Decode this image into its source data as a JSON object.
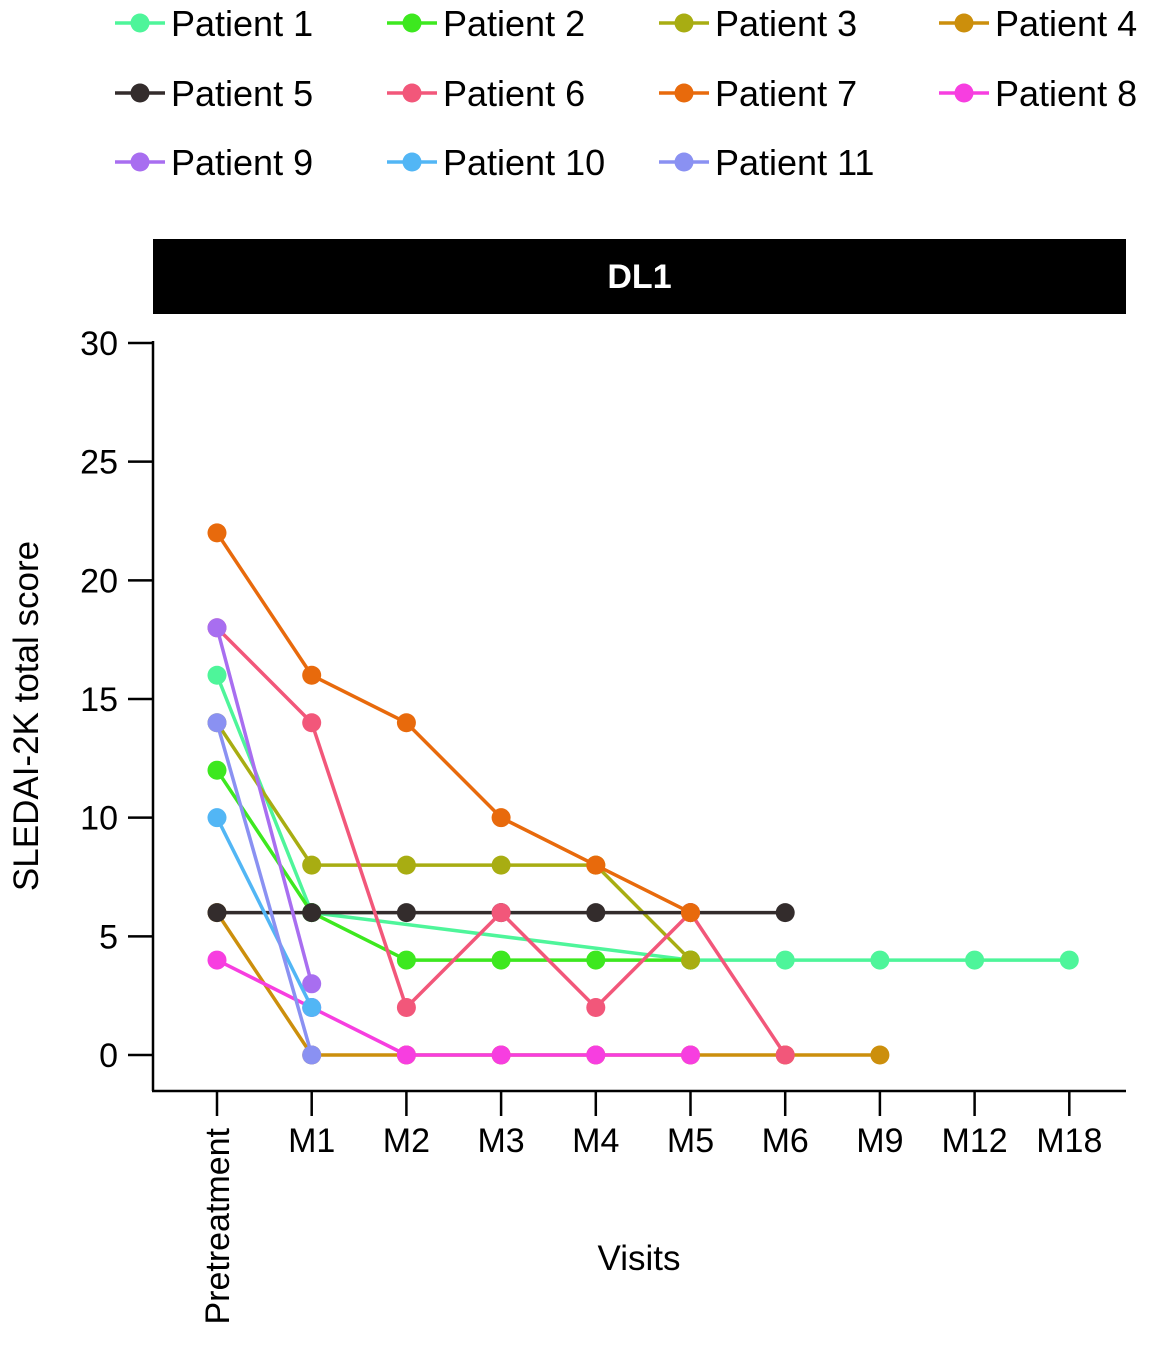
{
  "chart_data": {
    "type": "line",
    "panel_title": "DL1",
    "xlabel": "Visits",
    "ylabel": "SLEDAI-2K total score",
    "categories": [
      "Pretreatment",
      "M1",
      "M2",
      "M3",
      "M4",
      "M5",
      "M6",
      "M9",
      "M12",
      "M18"
    ],
    "yticks": [
      "0",
      "5",
      "10",
      "15",
      "20",
      "25",
      "30"
    ],
    "ylim": [
      0,
      30
    ],
    "grid": false,
    "legend_position": "top",
    "series": [
      {
        "name": "Patient 1",
        "color": "#4ef59a",
        "values": [
          16,
          6,
          null,
          null,
          null,
          4,
          4,
          4,
          4,
          4
        ]
      },
      {
        "name": "Patient 2",
        "color": "#3de81f",
        "values": [
          12,
          6,
          4,
          4,
          4,
          4,
          null,
          null,
          null,
          null
        ]
      },
      {
        "name": "Patient 3",
        "color": "#a8ad12",
        "values": [
          14,
          8,
          8,
          8,
          8,
          4,
          null,
          null,
          null,
          null
        ]
      },
      {
        "name": "Patient 4",
        "color": "#cc8f0c",
        "values": [
          6,
          0,
          0,
          0,
          0,
          0,
          0,
          0,
          null,
          null
        ]
      },
      {
        "name": "Patient 5",
        "color": "#332c2c",
        "values": [
          6,
          6,
          6,
          6,
          6,
          6,
          6,
          null,
          null,
          null
        ]
      },
      {
        "name": "Patient 6",
        "color": "#f2577a",
        "values": [
          18,
          14,
          2,
          6,
          2,
          6,
          0,
          null,
          null,
          null
        ]
      },
      {
        "name": "Patient 7",
        "color": "#e86a0c",
        "values": [
          22,
          16,
          14,
          10,
          8,
          6,
          null,
          null,
          null,
          null
        ]
      },
      {
        "name": "Patient 8",
        "color": "#f73ee0",
        "values": [
          4,
          2,
          0,
          0,
          0,
          0,
          null,
          null,
          null,
          null
        ]
      },
      {
        "name": "Patient 9",
        "color": "#a86ef0",
        "values": [
          18,
          3,
          null,
          null,
          null,
          null,
          null,
          null,
          null,
          null
        ]
      },
      {
        "name": "Patient 10",
        "color": "#52b6f5",
        "values": [
          10,
          2,
          null,
          null,
          null,
          null,
          null,
          null,
          null,
          null
        ]
      },
      {
        "name": "Patient 11",
        "color": "#8a91f2",
        "values": [
          14,
          0,
          null,
          null,
          null,
          null,
          null,
          null,
          null,
          null
        ]
      }
    ]
  }
}
